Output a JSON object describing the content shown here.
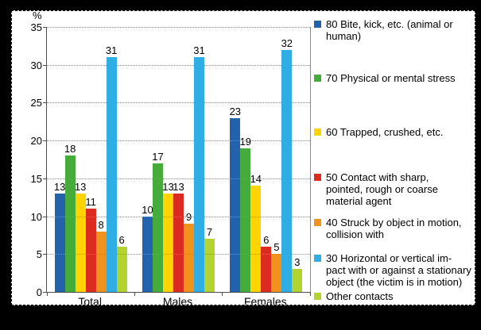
{
  "chart_data": {
    "type": "bar",
    "title": "",
    "ylabel": "%",
    "xlabel": "",
    "categories": [
      "Total",
      "Males",
      "Females"
    ],
    "series": [
      {
        "name": "80  Bite, kick, etc. (animal or human)",
        "color": "#2363AE",
        "values": [
          13,
          10,
          23
        ]
      },
      {
        "name": "70  Physical or mental stress",
        "color": "#45AC3C",
        "values": [
          18,
          17,
          19
        ]
      },
      {
        "name": "60  Trapped, crushed, etc.",
        "color": "#FFD400",
        "values": [
          13,
          13,
          14
        ]
      },
      {
        "name": "50  Contact with sharp, pointed, rough or coarse material agent",
        "color": "#DC2B20",
        "values": [
          11,
          13,
          6
        ]
      },
      {
        "name": "40  Struck by object in motion, collision with",
        "color": "#F0921E",
        "values": [
          8,
          9,
          5
        ]
      },
      {
        "name": "30  Horizontal or vertical impact with or against a stationary object (the victim is in motion)",
        "color": "#2FAEE6",
        "values": [
          31,
          31,
          32
        ]
      },
      {
        "name": "Other contacts",
        "color": "#B3D331",
        "values": [
          6,
          7,
          3
        ]
      }
    ],
    "ylim": [
      0,
      35
    ],
    "yticks": [
      0,
      5,
      10,
      15,
      20,
      25,
      30,
      35
    ],
    "grid": "horizontal-dotted",
    "legend_position": "right",
    "value_labels": true
  },
  "legend": {
    "items": [
      {
        "color": "#2363AE",
        "lines": [
          "80  Bite, kick, etc. (animal or",
          "human)"
        ]
      },
      {
        "color": "#45AC3C",
        "lines": [
          "70  Physical or mental stress"
        ]
      },
      {
        "color": "#FFD400",
        "lines": [
          "60  Trapped, crushed, etc."
        ]
      },
      {
        "color": "#DC2B20",
        "lines": [
          "50  Contact with sharp,",
          "pointed, rough or coarse",
          "material agent"
        ]
      },
      {
        "color": "#F0921E",
        "lines": [
          "40  Struck by object in motion,",
          "collision with"
        ]
      },
      {
        "color": "#2FAEE6",
        "lines": [
          "30  Horizontal or vertical im-",
          "pact with or against a stationary",
          "object (the victim is in motion)"
        ]
      },
      {
        "color": "#B3D331",
        "lines": [
          "Other contacts"
        ]
      }
    ]
  }
}
